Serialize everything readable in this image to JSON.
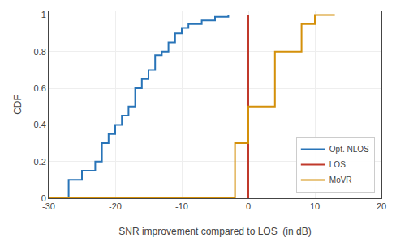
{
  "chart_data": {
    "type": "line",
    "xlabel": "SNR improvement compared to LOS  (in dB)",
    "ylabel": "CDF",
    "xlim": [
      -30,
      20
    ],
    "ylim": [
      0,
      1.02
    ],
    "xticks": [
      -30,
      -20,
      -10,
      0,
      10,
      20
    ],
    "yticks": [
      0,
      0.2,
      0.4,
      0.6,
      0.8,
      1
    ],
    "grid": true,
    "legend": "lower right",
    "series": [
      {
        "name": "Opt. NLOS",
        "type": "step",
        "color": "#2874b8",
        "x": [
          -30,
          -27,
          -25,
          -23,
          -22,
          -21,
          -20,
          -19,
          -18,
          -17,
          -16,
          -15,
          -14,
          -13,
          -12,
          -11,
          -10,
          -9,
          -7,
          -5,
          -3
        ],
        "values": [
          0,
          0.1,
          0.15,
          0.2,
          0.3,
          0.35,
          0.4,
          0.45,
          0.5,
          0.6,
          0.65,
          0.7,
          0.78,
          0.8,
          0.85,
          0.9,
          0.93,
          0.95,
          0.97,
          0.99,
          1.0
        ]
      },
      {
        "name": "LOS",
        "type": "line",
        "color": "#c0392b",
        "x": [
          0,
          0
        ],
        "values": [
          0,
          1
        ]
      },
      {
        "name": "MoVR",
        "type": "step",
        "color": "#d4900a",
        "x": [
          -30,
          -2,
          -2,
          0,
          0,
          4,
          4,
          8,
          8,
          10,
          10,
          13
        ],
        "values": [
          0,
          0,
          0.3,
          0.3,
          0.5,
          0.5,
          0.8,
          0.8,
          0.95,
          0.95,
          1.0,
          1.0
        ]
      }
    ]
  }
}
